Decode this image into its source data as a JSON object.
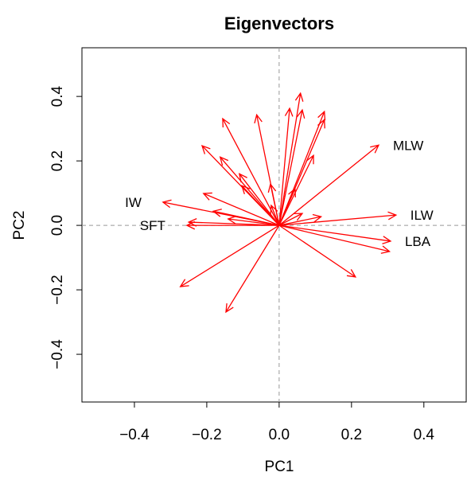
{
  "chart_data": {
    "type": "vector",
    "title": "Eigenvectors",
    "xlabel": "PC1",
    "ylabel": "PC2",
    "color": "#ff0000",
    "xlim": [
      -0.545,
      0.517
    ],
    "ylim": [
      -0.548,
      0.551
    ],
    "xticks": [
      {
        "value": -0.4,
        "label": "−0.4"
      },
      {
        "value": -0.2,
        "label": "−0.2"
      },
      {
        "value": 0,
        "label": "0.0"
      },
      0.2,
      0.4
    ],
    "yticks": [
      {
        "value": -0.4,
        "label": "−0.4"
      },
      {
        "value": -0.2,
        "label": "−0.2"
      },
      {
        "value": 0,
        "label": "0.0"
      },
      0.2,
      0.4
    ],
    "x": [
      0.275,
      0.323,
      0.308,
      0.305,
      0.211,
      -0.321,
      -0.255,
      -0.25,
      -0.273,
      -0.147,
      0.059,
      0.029,
      0.064,
      0.125,
      0.125,
      -0.062,
      -0.156,
      -0.213,
      -0.163,
      -0.209,
      -0.182,
      -0.103,
      -0.11,
      -0.024,
      0.044,
      0.095,
      0.116,
      0.064,
      -0.141,
      -0.022
    ],
    "y": [
      0.249,
      0.032,
      -0.049,
      -0.081,
      -0.16,
      0.072,
      0.0,
      0.01,
      -0.19,
      -0.269,
      0.41,
      0.363,
      0.358,
      0.353,
      0.328,
      0.343,
      0.331,
      0.247,
      0.212,
      0.099,
      0.044,
      0.123,
      0.16,
      0.128,
      0.114,
      0.217,
      0.027,
      0.037,
      0.02,
      0.062
    ],
    "labels": [
      "MLW",
      "ILW",
      "LBA",
      null,
      null,
      "IW",
      "SFT",
      null,
      null,
      null,
      null,
      null,
      null,
      null,
      null,
      null,
      null,
      null,
      null,
      null,
      null,
      null,
      null,
      null,
      null,
      null,
      null,
      null,
      null,
      null
    ]
  }
}
